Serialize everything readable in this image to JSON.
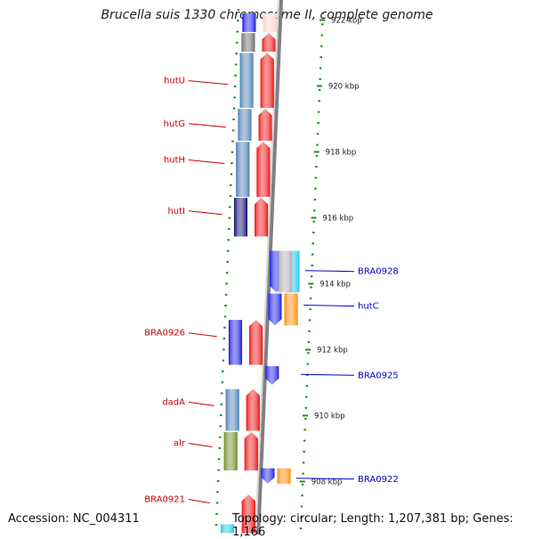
{
  "title": "Brucella suis 1330 chromosome II, complete genome",
  "footer": {
    "accession": "Accession: NC_004311",
    "summary": "Topology: circular; Length: 1,207,381 bp; Genes: 1,166"
  },
  "axis": {
    "unit": "kbp",
    "ticks": [
      {
        "label": "922 kbp",
        "kbp": 922
      },
      {
        "label": "920 kbp",
        "kbp": 920
      },
      {
        "label": "918 kbp",
        "kbp": 918
      },
      {
        "label": "916 kbp",
        "kbp": 916
      },
      {
        "label": "914 kbp",
        "kbp": 914
      },
      {
        "label": "912 kbp",
        "kbp": 912
      },
      {
        "label": "910 kbp",
        "kbp": 910
      },
      {
        "label": "908 kbp",
        "kbp": 908
      }
    ]
  },
  "left_labels": [
    {
      "text": "hutU",
      "kbp": 920.05
    },
    {
      "text": "hutG",
      "kbp": 918.75
    },
    {
      "text": "hutH",
      "kbp": 917.65
    },
    {
      "text": "hutI",
      "kbp": 916.1
    },
    {
      "text": "BRA0926",
      "kbp": 912.4
    },
    {
      "text": "dadA",
      "kbp": 910.3
    },
    {
      "text": "alr",
      "kbp": 909.05
    },
    {
      "text": "BRA0921",
      "kbp": 907.35
    }
  ],
  "right_labels": [
    {
      "text": "BRA0928",
      "kbp": 914.4
    },
    {
      "text": "hutC",
      "kbp": 913.35
    },
    {
      "text": "BRA0925",
      "kbp": 911.25
    },
    {
      "text": "BRA0922",
      "kbp": 908.1
    }
  ],
  "features": [
    {
      "id": "hutU-cds",
      "lane": -1,
      "start": 919.3,
      "end": 921.0,
      "color": "#4a7fb5"
    },
    {
      "id": "hutG-cds",
      "lane": -1,
      "start": 918.3,
      "end": 919.3,
      "color": "#4a7fb5"
    },
    {
      "id": "hutH-cds",
      "lane": -1,
      "start": 916.6,
      "end": 918.3,
      "color": "#4a7fb5"
    },
    {
      "id": "hutI-cds",
      "lane": -1,
      "start": 915.4,
      "end": 916.6,
      "color": "#0a0a6e"
    },
    {
      "id": "top-gray",
      "lane": -1,
      "start": 921.0,
      "end": 921.6,
      "color": "#6b6b6b"
    },
    {
      "id": "top-blue",
      "lane": -1,
      "start": 921.6,
      "end": 922.2,
      "color": "#1a1ae6"
    },
    {
      "id": "hutU-gene",
      "lane": -0.3,
      "start": 919.3,
      "end": 921.0,
      "color": "#ee1111",
      "arrow": "up"
    },
    {
      "id": "hutG-gene",
      "lane": -0.3,
      "start": 918.3,
      "end": 919.3,
      "color": "#ee1111",
      "arrow": "up"
    },
    {
      "id": "hutH-gene",
      "lane": -0.3,
      "start": 916.6,
      "end": 918.3,
      "color": "#ee1111",
      "arrow": "up"
    },
    {
      "id": "hutI-gene",
      "lane": -0.3,
      "start": 915.4,
      "end": 916.6,
      "color": "#ee1111",
      "arrow": "up"
    },
    {
      "id": "top-gene",
      "lane": -0.3,
      "start": 921.0,
      "end": 921.6,
      "color": "#ee1111",
      "arrow": "up"
    },
    {
      "id": "top-gene2",
      "lane": -0.3,
      "start": 921.6,
      "end": 922.2,
      "color": "#ffd0d0"
    },
    {
      "id": "BRA0928-gene",
      "lane": 0.3,
      "start": 913.7,
      "end": 915.0,
      "color": "#1a1ae6",
      "arrow": "down"
    },
    {
      "id": "BRA0928-cds",
      "lane": 0.85,
      "start": 913.7,
      "end": 915.0,
      "color": "#1ec8f0"
    },
    {
      "id": "BRA0928-cds2",
      "lane": 0.6,
      "start": 913.7,
      "end": 915.0,
      "color": "#b0b0b0"
    },
    {
      "id": "hutC-gene",
      "lane": 0.3,
      "start": 912.7,
      "end": 913.7,
      "color": "#1a1ae6",
      "arrow": "down"
    },
    {
      "id": "hutC-cds",
      "lane": 0.85,
      "start": 912.7,
      "end": 913.7,
      "color": "#ff8c00"
    },
    {
      "id": "BRA0926-cds",
      "lane": -1,
      "start": 911.5,
      "end": 912.9,
      "color": "#1a1ae6"
    },
    {
      "id": "BRA0926-gene",
      "lane": -0.3,
      "start": 911.5,
      "end": 912.9,
      "color": "#ee1111",
      "arrow": "up"
    },
    {
      "id": "BRA0925-gene",
      "lane": 0.3,
      "start": 910.9,
      "end": 911.5,
      "color": "#1a1ae6",
      "arrow": "down"
    },
    {
      "id": "dadA-cds",
      "lane": -1,
      "start": 909.5,
      "end": 910.8,
      "color": "#4a7fb5"
    },
    {
      "id": "dadA-gene",
      "lane": -0.3,
      "start": 909.5,
      "end": 910.8,
      "color": "#ee1111",
      "arrow": "up"
    },
    {
      "id": "alr-cds",
      "lane": -1,
      "start": 908.3,
      "end": 909.5,
      "color": "#6b8e23"
    },
    {
      "id": "alr-gene",
      "lane": -0.3,
      "start": 908.3,
      "end": 909.5,
      "color": "#ee1111",
      "arrow": "up"
    },
    {
      "id": "BRA0922-gene",
      "lane": 0.3,
      "start": 907.9,
      "end": 908.4,
      "color": "#1a1ae6",
      "arrow": "down"
    },
    {
      "id": "BRA0922-cds",
      "lane": 0.85,
      "start": 907.9,
      "end": 908.4,
      "color": "#ff8c00"
    },
    {
      "id": "BRA0921-gene",
      "lane": -0.3,
      "start": 906.4,
      "end": 907.6,
      "color": "#ee1111",
      "arrow": "up"
    },
    {
      "id": "BRA0921-cds",
      "lane": -1,
      "start": 906.4,
      "end": 906.7,
      "color": "#1ec8f0"
    }
  ],
  "colors": {
    "backbone": "#808080",
    "tick_green": "#1e8c1e",
    "label_left": "#cc0000",
    "label_right": "#0000cc"
  }
}
